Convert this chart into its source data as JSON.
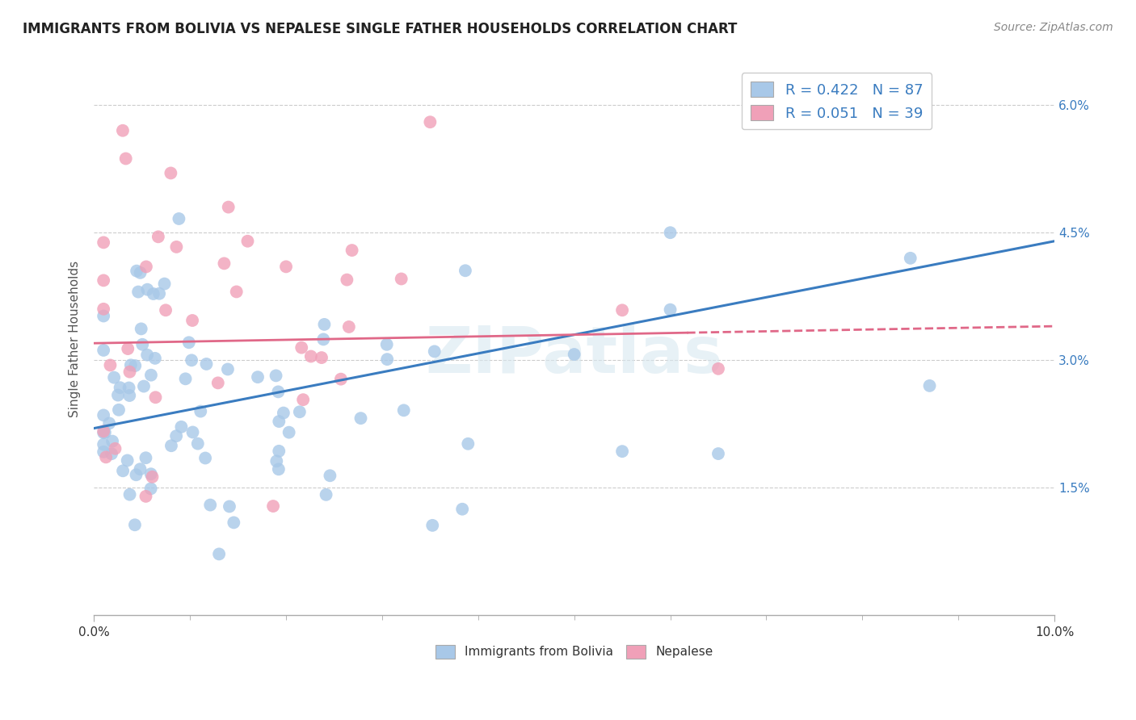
{
  "title": "IMMIGRANTS FROM BOLIVIA VS NEPALESE SINGLE FATHER HOUSEHOLDS CORRELATION CHART",
  "source": "Source: ZipAtlas.com",
  "ylabel": "Single Father Households",
  "xlim": [
    0.0,
    0.1
  ],
  "ylim": [
    0.0,
    0.065
  ],
  "blue_color": "#a8c8e8",
  "pink_color": "#f0a0b8",
  "blue_line_color": "#3a7cc0",
  "pink_line_color": "#e06888",
  "background_color": "#ffffff",
  "grid_color": "#cccccc",
  "watermark": "ZIPatlas",
  "legend_label1": "R = 0.422   N = 87",
  "legend_label2": "R = 0.051   N = 39",
  "bottom_label1": "Immigrants from Bolivia",
  "bottom_label2": "Nepalese"
}
